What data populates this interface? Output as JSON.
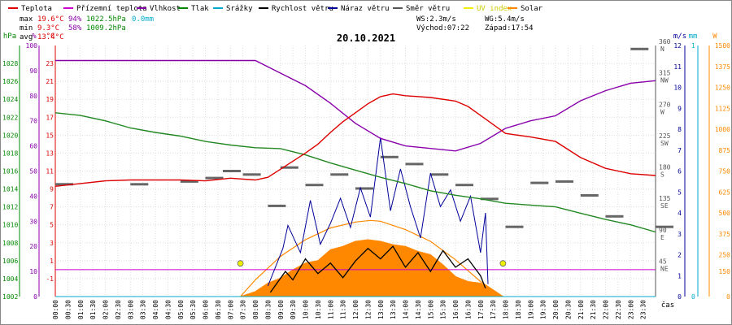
{
  "legend": [
    {
      "label": "Teplota",
      "color": "#dd0000"
    },
    {
      "label": "Přízemní teplota",
      "color": "#cc00cc"
    },
    {
      "label": "Vlhkost",
      "color": "#8800aa"
    },
    {
      "label": "Tlak",
      "color": "#008800"
    },
    {
      "label": "Srážky",
      "color": "#00aacc"
    },
    {
      "label": "Rychlost větru",
      "color": "#000000"
    },
    {
      "label": "Náraz větru",
      "color": "#000099"
    },
    {
      "label": "Směr větru",
      "color": "#555555"
    },
    {
      "label": "UV index",
      "color": "#eeee00"
    },
    {
      "label": "Solar",
      "color": "#ff8800"
    }
  ],
  "stats": {
    "max_label": "max",
    "max_temp": "19.6°C",
    "max_hum": "94%",
    "max_press": "1022.5hPa",
    "max_rain": "0.0mm",
    "min_label": "min",
    "min_temp": "9.3°C",
    "min_hum": "58%",
    "min_press": "1009.2hPa",
    "avg_label": "avg",
    "avg_temp": "13.4°C",
    "ws": "WS:2.3m/s",
    "wg": "WG:5.4m/s",
    "sunrise": "Východ:07:22",
    "sunset": "Západ:17:54"
  },
  "chart_data": {
    "type": "line",
    "title": "20.10.2021",
    "xlabel": "čas",
    "x_ticks": [
      "00:00",
      "00:30",
      "01:00",
      "01:30",
      "02:00",
      "02:30",
      "03:00",
      "03:30",
      "04:00",
      "04:30",
      "05:00",
      "05:30",
      "06:00",
      "06:30",
      "07:00",
      "07:30",
      "08:00",
      "08:30",
      "09:00",
      "09:30",
      "10:00",
      "10:30",
      "11:00",
      "11:30",
      "12:00",
      "12:30",
      "13:00",
      "13:30",
      "14:00",
      "14:30",
      "15:00",
      "15:30",
      "16:00",
      "16:30",
      "17:00",
      "17:30",
      "18:00",
      "18:30",
      "19:00",
      "19:30",
      "20:00",
      "20:30",
      "21:00",
      "21:30",
      "22:00",
      "22:30",
      "23:00",
      "23:30"
    ],
    "axes": {
      "hpa": {
        "unit": "hPa",
        "ticks": [
          1002,
          1004,
          1006,
          1008,
          1010,
          1012,
          1014,
          1016,
          1018,
          1020,
          1022,
          1024,
          1026,
          1028
        ],
        "range": [
          1002,
          1030
        ]
      },
      "pct": {
        "unit": "%",
        "ticks": [
          0,
          10,
          20,
          30,
          40,
          50,
          60,
          70,
          80,
          90,
          100
        ],
        "range": [
          0,
          100
        ]
      },
      "temp": {
        "unit": "°C",
        "ticks": [
          -1,
          1,
          3,
          5,
          7,
          9,
          11,
          13,
          15,
          17,
          19,
          21,
          23
        ],
        "range": [
          -3,
          25
        ]
      },
      "dir": {
        "unit": "",
        "ticks": [
          {
            "deg": "45",
            "dir": "NE"
          },
          {
            "deg": "90",
            "dir": "E"
          },
          {
            "deg": "135",
            "dir": "SE"
          },
          {
            "deg": "180",
            "dir": "S"
          },
          {
            "deg": "225",
            "dir": "SW"
          },
          {
            "deg": "270",
            "dir": "W"
          },
          {
            "deg": "315",
            "dir": "NW"
          },
          {
            "deg": "360",
            "dir": "N"
          }
        ],
        "range": [
          0,
          360
        ]
      },
      "ms": {
        "unit": "m/s",
        "ticks": [
          0,
          1,
          2,
          3,
          4,
          5,
          6,
          7,
          8,
          9,
          10,
          11,
          12
        ],
        "range": [
          0,
          12
        ]
      },
      "mm": {
        "unit": "mm",
        "ticks": [
          0,
          1
        ],
        "range": [
          0,
          1
        ]
      },
      "w": {
        "unit": "W",
        "ticks": [
          0,
          150,
          250,
          375,
          500,
          625,
          750,
          875,
          1000,
          1125,
          1250,
          1375,
          1500
        ],
        "range": [
          0,
          1500
        ]
      }
    },
    "series": [
      {
        "name": "Teplota",
        "unit": "°C",
        "x": [
          0,
          1,
          2,
          3,
          4,
          5,
          6,
          7,
          8,
          8.5,
          9,
          10,
          10.5,
          11,
          11.5,
          12,
          12.5,
          13,
          13.5,
          14,
          15,
          16,
          16.5,
          17,
          17.5,
          18,
          19,
          20,
          21,
          22,
          23,
          24
        ],
        "y": [
          9.3,
          9.6,
          9.9,
          10,
          10,
          10,
          9.9,
          10.2,
          10,
          10.3,
          11.2,
          13,
          14,
          15.3,
          16.5,
          17.5,
          18.5,
          19.3,
          19.6,
          19.4,
          19.2,
          18.8,
          18.2,
          17.2,
          16.2,
          15.2,
          14.8,
          14.3,
          12.5,
          11.3,
          10.7,
          10.5
        ]
      },
      {
        "name": "Vlhkost",
        "unit": "%",
        "x": [
          0,
          4,
          6,
          7,
          8,
          9,
          10,
          11,
          12,
          13,
          14,
          15,
          16,
          17,
          18,
          19,
          20,
          21,
          22,
          23,
          24
        ],
        "y": [
          94,
          94,
          94,
          94,
          94,
          89,
          84,
          77,
          69,
          63,
          60,
          59,
          58,
          61,
          67,
          70,
          72,
          78,
          82,
          85,
          86
        ]
      },
      {
        "name": "Tlak",
        "unit": "hPa",
        "x": [
          0,
          1,
          2,
          3,
          4,
          5,
          6,
          7,
          8,
          9,
          10,
          11,
          12,
          13,
          14,
          15,
          16,
          17,
          18,
          19,
          20,
          21,
          22,
          23,
          24
        ],
        "y": [
          1022.5,
          1022.2,
          1021.6,
          1020.8,
          1020.3,
          1019.9,
          1019.3,
          1018.9,
          1018.6,
          1018.5,
          1017.8,
          1016.9,
          1016.1,
          1015.3,
          1014.6,
          1013.8,
          1013.3,
          1012.9,
          1012.4,
          1012.2,
          1012.0,
          1011.3,
          1010.6,
          1010.0,
          1009.2
        ]
      },
      {
        "name": "Přízemní teplota",
        "unit": "°C",
        "x": [
          0,
          24
        ],
        "y": [
          0,
          0
        ]
      },
      {
        "name": "Srážky",
        "unit": "mm",
        "x": [
          0,
          24
        ],
        "y": [
          0,
          0
        ]
      },
      {
        "name": "Rychlost větru",
        "unit": "m/s",
        "x": [
          8.6,
          9.2,
          9.5,
          10,
          10.5,
          11,
          11.5,
          12,
          12.5,
          13,
          13.5,
          14,
          14.5,
          15,
          15.5,
          16,
          16.5,
          17,
          17.2
        ],
        "y": [
          0.2,
          1.2,
          0.8,
          1.8,
          1.1,
          1.6,
          0.9,
          1.7,
          2.3,
          1.8,
          2.4,
          1.4,
          2.1,
          1.2,
          2.2,
          1.4,
          1.8,
          1.0,
          0.4
        ]
      },
      {
        "name": "Náraz větru",
        "unit": "m/s",
        "x": [
          8.5,
          9.1,
          9.3,
          9.8,
          10.2,
          10.6,
          11,
          11.4,
          11.8,
          12.2,
          12.6,
          13,
          13.4,
          13.8,
          14.2,
          14.6,
          15,
          15.4,
          15.8,
          16.2,
          16.6,
          17,
          17.2,
          17.3
        ],
        "y": [
          0.5,
          2.3,
          3.4,
          2.1,
          4.6,
          2.5,
          3.5,
          4.7,
          3.3,
          5.2,
          3.8,
          7.6,
          4.1,
          6.1,
          4.3,
          2.8,
          5.9,
          4.3,
          5.1,
          3.6,
          4.8,
          2.1,
          4.0,
          0.6
        ]
      },
      {
        "name": "Směr větru",
        "unit": "°",
        "x": [
          0,
          3,
          5,
          6,
          6.7,
          7.5,
          8.5,
          9,
          10,
          11,
          12,
          13,
          14,
          15,
          16,
          17,
          18,
          19,
          20,
          21,
          22,
          23,
          24
        ],
        "y": [
          161,
          161,
          165,
          170,
          180,
          175,
          130,
          185,
          160,
          175,
          155,
          200,
          190,
          175,
          160,
          140,
          100,
          163,
          165,
          145,
          115,
          355,
          100
        ]
      },
      {
        "name": "Solar",
        "unit": "W",
        "x": [
          7.4,
          8,
          8.5,
          9,
          9.5,
          10,
          10.5,
          11,
          11.5,
          12,
          12.5,
          13,
          13.5,
          14,
          14.5,
          15,
          15.5,
          16,
          16.5,
          17,
          17.5,
          17.9
        ],
        "y": [
          0,
          30,
          80,
          110,
          160,
          200,
          215,
          280,
          300,
          330,
          340,
          330,
          310,
          300,
          270,
          250,
          190,
          120,
          90,
          80,
          40,
          0
        ]
      },
      {
        "name": "Solar theoretical",
        "unit": "W",
        "x": [
          7.4,
          8,
          9,
          10,
          11,
          12,
          12.6,
          13,
          14,
          15,
          16,
          17,
          17.9
        ],
        "y": [
          0,
          100,
          240,
          340,
          410,
          445,
          455,
          450,
          400,
          330,
          220,
          90,
          0
        ]
      }
    ]
  }
}
